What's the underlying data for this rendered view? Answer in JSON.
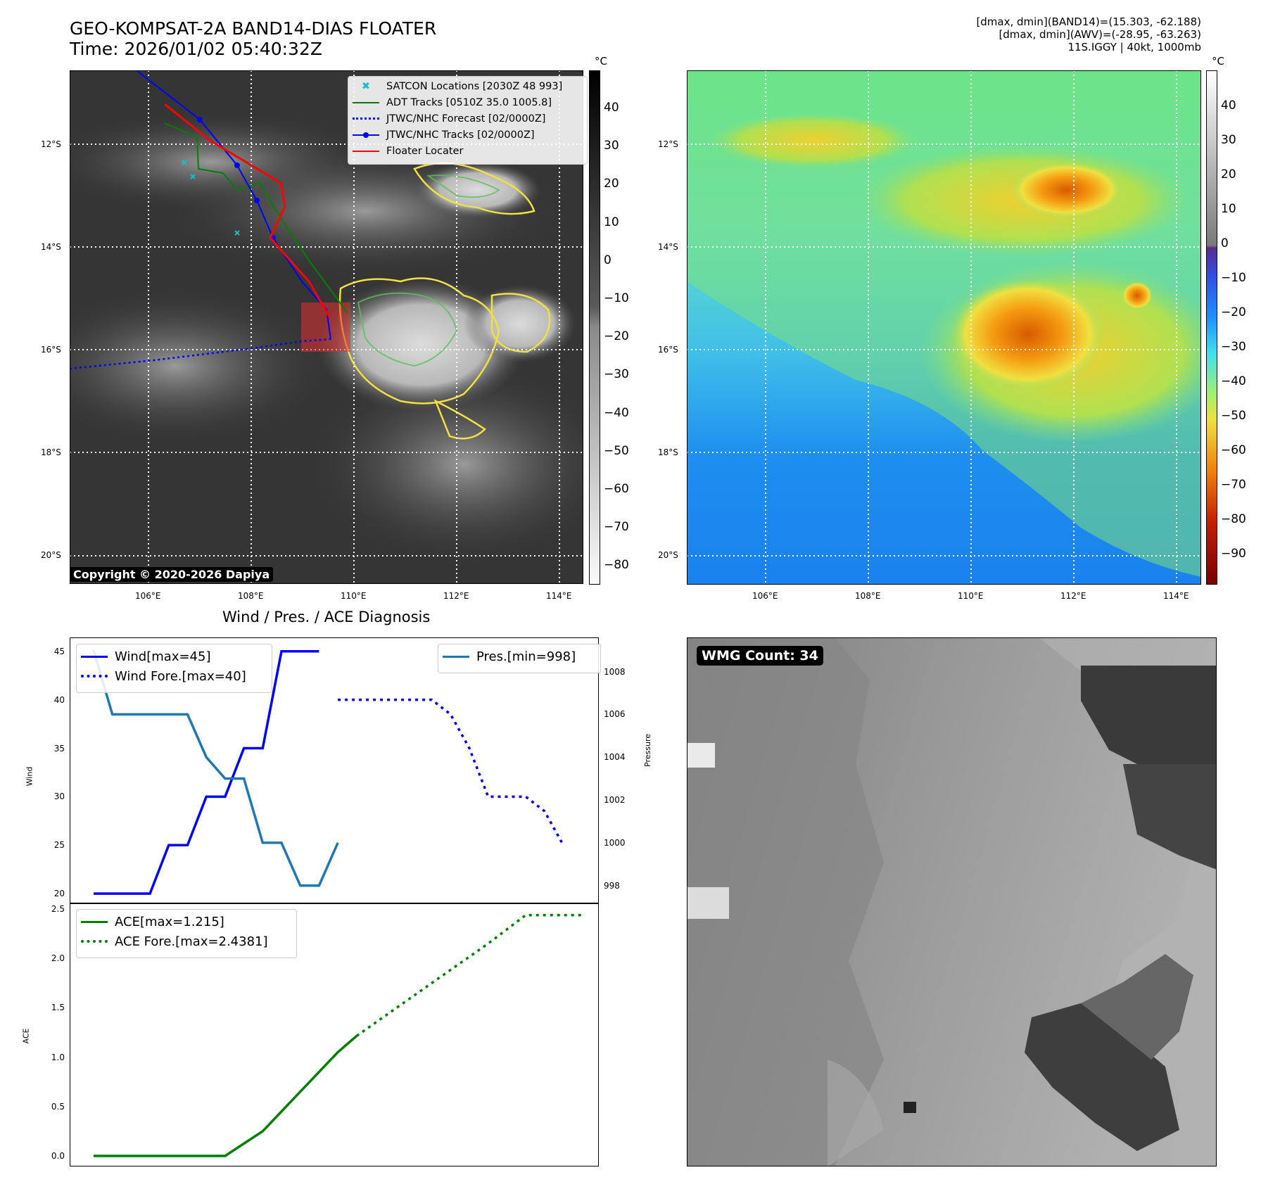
{
  "header": {
    "title_line1": "GEO-KOMPSAT-2A BAND14-DIAS FLOATER",
    "title_line2": "Time: 2026/01/02 05:40:32Z",
    "stats_line1": "[dmax, dmin](BAND14)=(15.303, -62.188)",
    "stats_line2": "[dmax, dmin](AWV)=(-28.95, -63.263)",
    "stats_line3": "11S.IGGY | 40kt, 1000mb"
  },
  "ir_panel": {
    "colorbar_unit": "°C",
    "colorbar_ticks": [
      "40",
      "30",
      "20",
      "10",
      "0",
      "−10",
      "−20",
      "−30",
      "−40",
      "−50",
      "−60",
      "−70",
      "−80"
    ],
    "lat_labels": [
      "12°S",
      "14°S",
      "16°S",
      "18°S",
      "20°S"
    ],
    "lon_labels": [
      "106°E",
      "108°E",
      "110°E",
      "112°E",
      "114°E"
    ],
    "copyright": "Copyright © 2020-2026 Dapiya",
    "legend": [
      {
        "label": "SATCON Locations [2030Z 48 993]",
        "color": "#17becf",
        "style": "x"
      },
      {
        "label": "ADT Tracks [0510Z 35.0 1005.8]",
        "color": "#008000",
        "style": "solid"
      },
      {
        "label": "JTWC/NHC Forecast [02/0000Z]",
        "color": "#0000ff",
        "style": "dotted"
      },
      {
        "label": "JTWC/NHC Tracks [02/0000Z]",
        "color": "#0000ff",
        "style": "solid-dot"
      },
      {
        "label": "Floater Locater",
        "color": "#ff0000",
        "style": "solid"
      }
    ]
  },
  "wv_panel": {
    "colorbar_unit": "°C",
    "colorbar_ticks": [
      "40",
      "30",
      "20",
      "10",
      "0",
      "−10",
      "−20",
      "−30",
      "−40",
      "−50",
      "−60",
      "−70",
      "−80",
      "−90"
    ],
    "lat_labels": [
      "12°S",
      "14°S",
      "16°S",
      "18°S",
      "20°S"
    ],
    "lon_labels": [
      "106°E",
      "108°E",
      "110°E",
      "112°E",
      "114°E"
    ]
  },
  "wmg_panel": {
    "badge": "WMG Count: 34"
  },
  "diag_panel": {
    "title": "Wind / Pres. / ACE Diagnosis",
    "wind_ylabel": "Wind",
    "pres_ylabel": "Pressure",
    "ace_ylabel": "ACE",
    "wind_ticks": [
      "45",
      "40",
      "35",
      "30",
      "25",
      "20"
    ],
    "pres_ticks": [
      "1008",
      "1006",
      "1004",
      "1002",
      "1000",
      "998"
    ],
    "ace_ticks": [
      "2.5",
      "2.0",
      "1.5",
      "1.0",
      "0.5",
      "0.0"
    ],
    "legend_wind": "Wind[max=45]",
    "legend_wind_fore": "Wind Fore.[max=40]",
    "legend_pres": "Pres.[min=998]",
    "legend_ace": "ACE[max=1.215]",
    "legend_ace_fore": "ACE Fore.[max=2.4381]"
  },
  "chart_data": [
    {
      "type": "line",
      "title": "Wind / Pres. / ACE Diagnosis",
      "ylabel": "Wind",
      "ylim": [
        19.5,
        46
      ],
      "series": [
        {
          "name": "Wind[max=45]",
          "style": "solid",
          "color": "#0000ff",
          "x": [
            0,
            1,
            2,
            3,
            4,
            5,
            6,
            7,
            8,
            9,
            10,
            11,
            12
          ],
          "values": [
            20,
            20,
            20,
            20,
            25,
            25,
            30,
            30,
            35,
            35,
            45,
            45,
            45
          ]
        },
        {
          "name": "Wind Fore.[max=40]",
          "style": "dotted",
          "color": "#0000ff",
          "x": [
            13,
            14,
            15,
            16,
            17,
            18,
            19,
            20,
            21,
            22,
            23,
            24,
            25
          ],
          "values": [
            40,
            40,
            40,
            40,
            40,
            40,
            38.5,
            35,
            30,
            30,
            30,
            28.5,
            25
          ]
        }
      ]
    },
    {
      "type": "line",
      "ylabel": "Pressure",
      "ylim": [
        997.4,
        1009.4
      ],
      "series": [
        {
          "name": "Pres.[min=998]",
          "style": "solid",
          "color": "#1f77b4",
          "x": [
            0,
            1,
            2,
            3,
            4,
            5,
            6,
            7,
            8,
            9,
            10,
            11,
            12,
            13
          ],
          "values": [
            1009,
            1006,
            1006,
            1006,
            1006,
            1006,
            1004,
            1003,
            1003,
            1000,
            1000,
            998,
            998,
            1000
          ]
        }
      ]
    },
    {
      "type": "line",
      "ylabel": "ACE",
      "ylim": [
        -0.05,
        2.5
      ],
      "series": [
        {
          "name": "ACE[max=1.215]",
          "style": "solid",
          "color": "#008000",
          "x": [
            0,
            7,
            9,
            11,
            13,
            14
          ],
          "values": [
            0,
            0,
            0.25,
            0.65,
            1.05,
            1.215
          ]
        },
        {
          "name": "ACE Fore.[max=2.4381]",
          "style": "dotted",
          "color": "#008000",
          "x": [
            14,
            18,
            21,
            23,
            26
          ],
          "values": [
            1.215,
            1.75,
            2.15,
            2.4381,
            2.4381
          ]
        }
      ]
    }
  ]
}
